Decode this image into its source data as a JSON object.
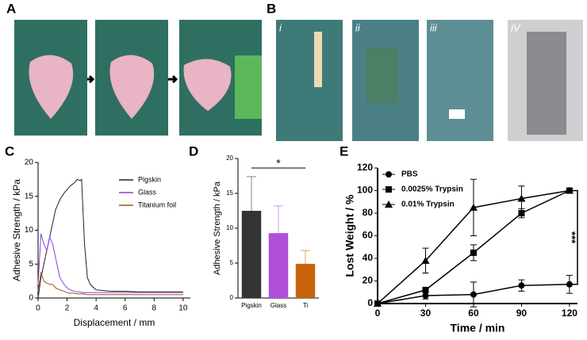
{
  "panel_labels": [
    "A",
    "B",
    "C",
    "D",
    "E"
  ],
  "photo_labels": [
    "i",
    "ii",
    "iii",
    "iV"
  ],
  "chart_data": [
    {
      "type": "line",
      "xlabel": "Displacement / mm",
      "ylabel": "Adhesive Strength / kPa",
      "x": [
        0,
        0.2,
        0.4,
        0.6,
        0.8,
        1,
        1.2,
        1.5,
        1.8,
        2,
        2.2,
        2.5,
        2.7,
        2.9,
        3,
        3.2,
        3.4,
        3.6,
        4,
        5,
        6,
        7,
        8,
        9,
        10
      ],
      "xlim": [
        0,
        10.5
      ],
      "xticks": [
        0,
        2,
        4,
        6,
        8,
        10
      ],
      "ylim": [
        0,
        20
      ],
      "yticks": [
        0,
        5,
        10,
        15,
        20
      ],
      "legend": "upper right",
      "series": [
        {
          "name": "Pigskin",
          "color": "#222222",
          "values": [
            0,
            3,
            5,
            7,
            9,
            11,
            13,
            14.5,
            15.5,
            16,
            16.5,
            17,
            17.5,
            17.3,
            17.5,
            8,
            3,
            2,
            1.2,
            1,
            1,
            0.9,
            0.9,
            0.9,
            0.9
          ]
        },
        {
          "name": "Glass",
          "color": "#8a3fe0",
          "values": [
            2,
            9.5,
            8,
            7,
            9,
            8,
            6,
            3,
            2,
            1.5,
            1.2,
            1,
            0.9,
            0.9,
            0.8,
            0.8,
            0.8,
            0.8,
            0.8,
            0.8,
            0.8,
            0.8,
            0.8,
            0.8,
            0.8
          ]
        },
        {
          "name": "Titanium foil",
          "color": "#a0521c",
          "values": [
            1,
            3.8,
            2.5,
            2.2,
            2,
            2,
            1.5,
            1.2,
            1,
            0.8,
            0.7,
            0.7,
            0.6,
            0.6,
            0.6,
            0.6,
            0.5,
            0.5,
            0.5,
            0.5,
            0.5,
            0.5,
            0.5,
            0.5,
            0.5
          ]
        }
      ]
    },
    {
      "type": "bar",
      "ylabel": "Adhesive Strength / kPa",
      "categories": [
        "Pigskin",
        "Glass",
        "Ti"
      ],
      "values": [
        12.5,
        9.3,
        4.9
      ],
      "errors": [
        4.9,
        3.9,
        1.9
      ],
      "colors": [
        "#333333",
        "#b04fd8",
        "#c8650a"
      ],
      "ylim": [
        0,
        20
      ],
      "yticks": [
        0,
        5,
        10,
        15,
        20
      ],
      "annotation": "*"
    },
    {
      "type": "line",
      "xlabel": "Time / min",
      "ylabel": "Lost Weight / %",
      "x": [
        0,
        30,
        60,
        90,
        120
      ],
      "xlim": [
        0,
        125
      ],
      "xticks": [
        0,
        30,
        60,
        90,
        120
      ],
      "ylim": [
        0,
        120
      ],
      "yticks": [
        0,
        20,
        40,
        60,
        80,
        100,
        120
      ],
      "legend": "upper left",
      "annotation": "***",
      "series": [
        {
          "name": "PBS",
          "color": "#000000",
          "marker": "circle",
          "values": [
            0,
            7,
            8,
            16,
            17
          ],
          "errors": [
            0,
            3,
            11,
            5,
            8
          ]
        },
        {
          "name": "0.0025% Trypsin",
          "color": "#000000",
          "marker": "square",
          "values": [
            0,
            12,
            45,
            80,
            100
          ],
          "errors": [
            0,
            2,
            7,
            4,
            0
          ]
        },
        {
          "name": "0.01% Trypsin",
          "color": "#000000",
          "marker": "triangle",
          "values": [
            0,
            38,
            85,
            93,
            100
          ],
          "errors": [
            0,
            11,
            25,
            11,
            0
          ]
        }
      ]
    }
  ]
}
